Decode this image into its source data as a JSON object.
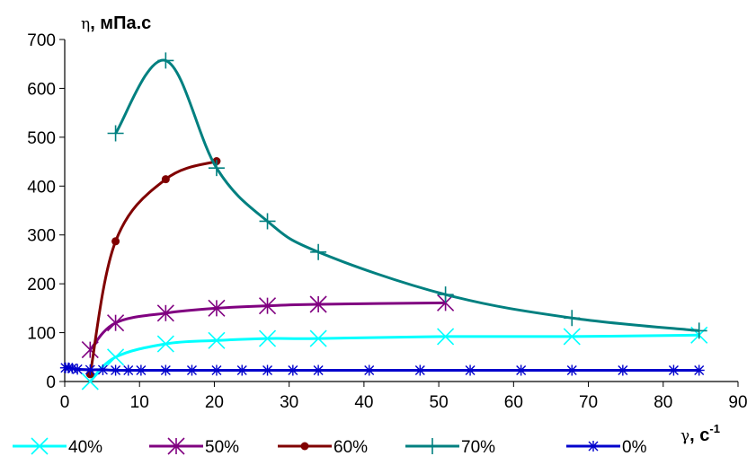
{
  "chart_data": {
    "type": "line",
    "ylabel_symbol": "η",
    "ylabel_unit": ", мПа.с",
    "xlabel_symbol": "γ",
    "xlabel_unit": ", с",
    "xlabel_exponent": "-1",
    "xlim": [
      0,
      90
    ],
    "ylim": [
      0,
      700
    ],
    "xticks": [
      0,
      10,
      20,
      30,
      40,
      50,
      60,
      70,
      80,
      90
    ],
    "yticks": [
      0,
      100,
      200,
      300,
      400,
      500,
      600,
      700
    ],
    "grid": false,
    "legend_position": "bottom",
    "series": [
      {
        "name": "40%",
        "color": "#00ffff",
        "marker": "x",
        "x": [
          3.4,
          6.8,
          13.5,
          20.3,
          27.1,
          33.9,
          50.9,
          67.8,
          84.8
        ],
        "y": [
          0,
          50,
          77,
          84,
          88,
          88,
          92,
          92,
          95
        ]
      },
      {
        "name": "50%",
        "color": "#800080",
        "marker": "star",
        "x": [
          3.4,
          6.8,
          13.5,
          20.3,
          27.1,
          33.9,
          50.9
        ],
        "y": [
          65,
          120,
          140,
          150,
          155,
          158,
          161
        ]
      },
      {
        "name": "60%",
        "color": "#800000",
        "marker": "dot",
        "x": [
          3.4,
          6.8,
          13.5,
          20.3
        ],
        "y": [
          15,
          287,
          414,
          451
        ]
      },
      {
        "name": "70%",
        "color": "#008080",
        "marker": "plus",
        "x": [
          6.8,
          13.5,
          20.3,
          27.1,
          33.9,
          50.9,
          67.8,
          84.8
        ],
        "y": [
          508,
          657,
          437,
          328,
          265,
          178,
          130,
          104
        ]
      },
      {
        "name": "0%",
        "color": "#0000cc",
        "marker": "asterisk",
        "x": [
          0.1,
          0.5,
          1.0,
          1.7,
          3.4,
          5.1,
          6.8,
          8.5,
          10.2,
          13.5,
          17.0,
          20.3,
          23.7,
          27.1,
          30.5,
          33.9,
          40.7,
          47.5,
          54.2,
          61.0,
          67.8,
          74.6,
          81.4,
          84.8
        ],
        "y": [
          28,
          28,
          27,
          25,
          24,
          24,
          23,
          23,
          23,
          23,
          23,
          23,
          23,
          23,
          23,
          23,
          23,
          23,
          23,
          23,
          23,
          23,
          23,
          23
        ]
      }
    ]
  }
}
